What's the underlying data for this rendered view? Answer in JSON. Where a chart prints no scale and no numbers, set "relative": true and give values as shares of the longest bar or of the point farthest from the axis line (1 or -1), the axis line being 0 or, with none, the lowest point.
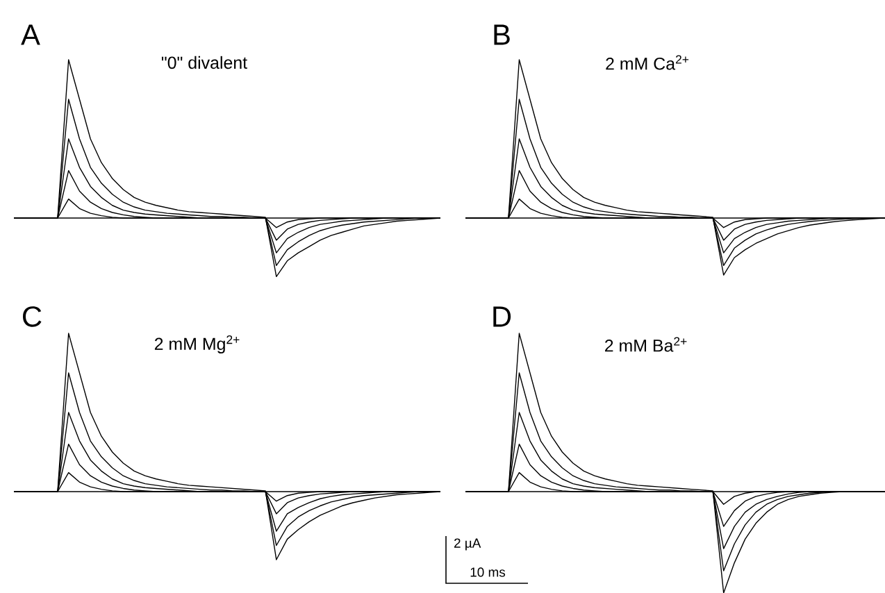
{
  "chart_data": [
    {
      "type": "line",
      "title": "\"0\" divalent",
      "annotations": [
        "A"
      ],
      "relative": true,
      "categories": [
        null,
        null,
        null,
        null,
        null,
        null,
        null,
        null,
        null,
        null,
        null,
        null,
        null,
        null,
        null,
        null,
        null,
        null,
        null,
        null,
        null,
        null,
        null,
        null,
        null,
        null,
        null,
        null,
        null,
        null,
        null,
        null,
        null,
        null,
        null,
        null,
        null,
        null,
        null,
        null
      ],
      "series": [
        {
          "color": "#000000",
          "values": [
            0,
            0,
            0,
            0,
            0,
            1,
            0.75,
            0.5,
            0.35,
            0.25,
            0.18,
            0.13,
            0.1,
            0.08,
            0.065,
            0.05,
            0.04,
            0.035,
            0.03,
            0.025,
            0.02,
            0.015,
            0.01,
            0.005,
            -0.37,
            -0.27,
            -0.22,
            -0.18,
            -0.14,
            -0.11,
            -0.09,
            -0.07,
            -0.05,
            -0.04,
            -0.03,
            -0.02,
            -0.015,
            -0.01,
            -0.005,
            0
          ]
        },
        {
          "color": "#000000",
          "values": [
            0,
            0,
            0,
            0,
            0,
            0.75,
            0.5,
            0.32,
            0.22,
            0.15,
            0.1,
            0.07,
            0.05,
            0.04,
            0.03,
            0.025,
            0.02,
            0.015,
            0.01,
            0.01,
            0.005,
            0.005,
            0,
            0,
            -0.3,
            -0.2,
            -0.15,
            -0.11,
            -0.08,
            -0.06,
            -0.045,
            -0.035,
            -0.025,
            -0.02,
            -0.015,
            -0.01,
            -0.005,
            0,
            0,
            0
          ]
        },
        {
          "color": "#000000",
          "values": [
            0,
            0,
            0,
            0,
            0,
            0.5,
            0.32,
            0.2,
            0.13,
            0.08,
            0.05,
            0.035,
            0.025,
            0.02,
            0.015,
            0.01,
            0.005,
            0,
            0,
            0,
            0,
            0,
            0,
            0,
            -0.22,
            -0.13,
            -0.09,
            -0.06,
            -0.04,
            -0.03,
            -0.02,
            -0.015,
            -0.01,
            -0.005,
            0,
            0,
            0,
            0,
            0,
            0
          ]
        },
        {
          "color": "#000000",
          "values": [
            0,
            0,
            0,
            0,
            0,
            0.3,
            0.17,
            0.1,
            0.06,
            0.035,
            0.02,
            0.01,
            0.005,
            0,
            0,
            0,
            0,
            0,
            0,
            0,
            0,
            0,
            0,
            0,
            -0.14,
            -0.07,
            -0.04,
            -0.025,
            -0.015,
            -0.01,
            -0.005,
            0,
            0,
            0,
            0,
            0,
            0,
            0,
            0,
            0
          ]
        },
        {
          "color": "#000000",
          "values": [
            0,
            0,
            0,
            0,
            0,
            0.12,
            0.06,
            0.03,
            0.015,
            0.005,
            0,
            0,
            0,
            0,
            0,
            0,
            0,
            0,
            0,
            0,
            0,
            0,
            0,
            0,
            -0.06,
            -0.025,
            -0.01,
            -0.005,
            0,
            0,
            0,
            0,
            0,
            0,
            0,
            0,
            0,
            0,
            0,
            0
          ]
        }
      ]
    },
    {
      "type": "line",
      "title": "2 mM Ca$^{2+}$",
      "annotations": [
        "B"
      ],
      "relative": true,
      "categories": [
        null,
        null,
        null,
        null,
        null,
        null,
        null,
        null,
        null,
        null,
        null,
        null,
        null,
        null,
        null,
        null,
        null,
        null,
        null,
        null,
        null,
        null,
        null,
        null,
        null,
        null,
        null,
        null,
        null,
        null,
        null,
        null,
        null,
        null,
        null,
        null,
        null,
        null,
        null,
        null
      ],
      "series": [
        {
          "color": "#000000",
          "values": [
            0,
            0,
            0,
            0,
            0,
            1,
            0.75,
            0.5,
            0.35,
            0.25,
            0.18,
            0.13,
            0.1,
            0.08,
            0.065,
            0.05,
            0.04,
            0.035,
            0.03,
            0.025,
            0.02,
            0.015,
            0.01,
            0.005,
            -0.36,
            -0.25,
            -0.2,
            -0.16,
            -0.13,
            -0.1,
            -0.08,
            -0.06,
            -0.045,
            -0.035,
            -0.025,
            -0.018,
            -0.012,
            -0.008,
            -0.004,
            0
          ]
        },
        {
          "color": "#000000",
          "values": [
            0,
            0,
            0,
            0,
            0,
            0.75,
            0.5,
            0.32,
            0.22,
            0.15,
            0.1,
            0.07,
            0.05,
            0.04,
            0.03,
            0.025,
            0.02,
            0.015,
            0.01,
            0.01,
            0.005,
            0.005,
            0,
            0,
            -0.3,
            -0.19,
            -0.14,
            -0.1,
            -0.075,
            -0.055,
            -0.04,
            -0.03,
            -0.022,
            -0.016,
            -0.011,
            -0.007,
            -0.004,
            0,
            0,
            0
          ]
        },
        {
          "color": "#000000",
          "values": [
            0,
            0,
            0,
            0,
            0,
            0.5,
            0.32,
            0.2,
            0.13,
            0.08,
            0.05,
            0.035,
            0.025,
            0.02,
            0.015,
            0.01,
            0.005,
            0,
            0,
            0,
            0,
            0,
            0,
            0,
            -0.22,
            -0.13,
            -0.09,
            -0.06,
            -0.04,
            -0.03,
            -0.02,
            -0.015,
            -0.01,
            -0.005,
            0,
            0,
            0,
            0,
            0,
            0
          ]
        },
        {
          "color": "#000000",
          "values": [
            0,
            0,
            0,
            0,
            0,
            0.3,
            0.17,
            0.1,
            0.06,
            0.035,
            0.02,
            0.01,
            0.005,
            0,
            0,
            0,
            0,
            0,
            0,
            0,
            0,
            0,
            0,
            0,
            -0.14,
            -0.07,
            -0.04,
            -0.025,
            -0.015,
            -0.01,
            -0.005,
            0,
            0,
            0,
            0,
            0,
            0,
            0,
            0,
            0
          ]
        },
        {
          "color": "#000000",
          "values": [
            0,
            0,
            0,
            0,
            0,
            0.12,
            0.06,
            0.03,
            0.015,
            0.005,
            0,
            0,
            0,
            0,
            0,
            0,
            0,
            0,
            0,
            0,
            0,
            0,
            0,
            0,
            -0.06,
            -0.025,
            -0.01,
            -0.005,
            0,
            0,
            0,
            0,
            0,
            0,
            0,
            0,
            0,
            0,
            0,
            0
          ]
        }
      ]
    },
    {
      "type": "line",
      "title": "2 mM Mg$^{2+}$",
      "annotations": [
        "C"
      ],
      "relative": true,
      "categories": [
        null,
        null,
        null,
        null,
        null,
        null,
        null,
        null,
        null,
        null,
        null,
        null,
        null,
        null,
        null,
        null,
        null,
        null,
        null,
        null,
        null,
        null,
        null,
        null,
        null,
        null,
        null,
        null,
        null,
        null,
        null,
        null,
        null,
        null,
        null,
        null,
        null,
        null,
        null,
        null
      ],
      "series": [
        {
          "color": "#000000",
          "values": [
            0,
            0,
            0,
            0,
            0,
            1,
            0.75,
            0.5,
            0.35,
            0.25,
            0.18,
            0.13,
            0.1,
            0.08,
            0.065,
            0.05,
            0.04,
            0.035,
            0.03,
            0.025,
            0.02,
            0.015,
            0.01,
            0.005,
            -0.43,
            -0.3,
            -0.24,
            -0.19,
            -0.15,
            -0.12,
            -0.09,
            -0.07,
            -0.055,
            -0.04,
            -0.03,
            -0.02,
            -0.015,
            -0.01,
            -0.005,
            0
          ]
        },
        {
          "color": "#000000",
          "values": [
            0,
            0,
            0,
            0,
            0,
            0.75,
            0.5,
            0.32,
            0.22,
            0.15,
            0.1,
            0.07,
            0.05,
            0.04,
            0.03,
            0.025,
            0.02,
            0.015,
            0.01,
            0.01,
            0.005,
            0.005,
            0,
            0,
            -0.34,
            -0.22,
            -0.16,
            -0.12,
            -0.09,
            -0.065,
            -0.05,
            -0.035,
            -0.025,
            -0.02,
            -0.015,
            -0.01,
            -0.005,
            0,
            0,
            0
          ]
        },
        {
          "color": "#000000",
          "values": [
            0,
            0,
            0,
            0,
            0,
            0.5,
            0.32,
            0.2,
            0.13,
            0.08,
            0.05,
            0.035,
            0.025,
            0.02,
            0.015,
            0.01,
            0.005,
            0,
            0,
            0,
            0,
            0,
            0,
            0,
            -0.25,
            -0.14,
            -0.1,
            -0.07,
            -0.045,
            -0.03,
            -0.02,
            -0.015,
            -0.01,
            -0.005,
            0,
            0,
            0,
            0,
            0,
            0
          ]
        },
        {
          "color": "#000000",
          "values": [
            0,
            0,
            0,
            0,
            0,
            0.3,
            0.17,
            0.1,
            0.06,
            0.035,
            0.02,
            0.01,
            0.005,
            0,
            0,
            0,
            0,
            0,
            0,
            0,
            0,
            0,
            0,
            0,
            -0.14,
            -0.07,
            -0.04,
            -0.025,
            -0.015,
            -0.01,
            -0.005,
            0,
            0,
            0,
            0,
            0,
            0,
            0,
            0,
            0
          ]
        },
        {
          "color": "#000000",
          "values": [
            0,
            0,
            0,
            0,
            0,
            0.12,
            0.06,
            0.03,
            0.015,
            0.005,
            0,
            0,
            0,
            0,
            0,
            0,
            0,
            0,
            0,
            0,
            0,
            0,
            0,
            0,
            -0.06,
            -0.025,
            -0.01,
            -0.005,
            0,
            0,
            0,
            0,
            0,
            0,
            0,
            0,
            0,
            0,
            0,
            0
          ]
        }
      ]
    },
    {
      "type": "line",
      "title": "2 mM Ba$^{2+}$",
      "annotations": [
        "D",
        "2 µA",
        "10 ms"
      ],
      "relative": true,
      "categories": [
        null,
        null,
        null,
        null,
        null,
        null,
        null,
        null,
        null,
        null,
        null,
        null,
        null,
        null,
        null,
        null,
        null,
        null,
        null,
        null,
        null,
        null,
        null,
        null,
        null,
        null,
        null,
        null,
        null,
        null,
        null,
        null,
        null,
        null,
        null,
        null,
        null,
        null,
        null,
        null
      ],
      "series": [
        {
          "color": "#000000",
          "values": [
            0,
            0,
            0,
            0,
            0,
            1,
            0.75,
            0.5,
            0.35,
            0.25,
            0.18,
            0.13,
            0.1,
            0.08,
            0.065,
            0.05,
            0.04,
            0.035,
            0.03,
            0.025,
            0.02,
            0.015,
            0.01,
            0.005,
            -0.64,
            -0.45,
            -0.3,
            -0.2,
            -0.13,
            -0.08,
            -0.05,
            -0.03,
            -0.02,
            -0.01,
            -0.005,
            0,
            0,
            0,
            0,
            0
          ]
        },
        {
          "color": "#000000",
          "values": [
            0,
            0,
            0,
            0,
            0,
            0.75,
            0.5,
            0.32,
            0.22,
            0.15,
            0.1,
            0.07,
            0.05,
            0.04,
            0.03,
            0.025,
            0.02,
            0.015,
            0.01,
            0.01,
            0.005,
            0.005,
            0,
            0,
            -0.5,
            -0.33,
            -0.21,
            -0.13,
            -0.08,
            -0.05,
            -0.03,
            -0.02,
            -0.01,
            -0.005,
            0,
            0,
            0,
            0,
            0,
            0
          ]
        },
        {
          "color": "#000000",
          "values": [
            0,
            0,
            0,
            0,
            0,
            0.5,
            0.32,
            0.2,
            0.13,
            0.08,
            0.05,
            0.035,
            0.025,
            0.02,
            0.015,
            0.01,
            0.005,
            0,
            0,
            0,
            0,
            0,
            0,
            0,
            -0.36,
            -0.22,
            -0.13,
            -0.08,
            -0.05,
            -0.03,
            -0.015,
            -0.005,
            0,
            0,
            0,
            0,
            0,
            0,
            0,
            0
          ]
        },
        {
          "color": "#000000",
          "values": [
            0,
            0,
            0,
            0,
            0,
            0.3,
            0.17,
            0.1,
            0.06,
            0.035,
            0.02,
            0.01,
            0.005,
            0,
            0,
            0,
            0,
            0,
            0,
            0,
            0,
            0,
            0,
            0,
            -0.22,
            -0.12,
            -0.06,
            -0.03,
            -0.015,
            -0.005,
            0,
            0,
            0,
            0,
            0,
            0,
            0,
            0,
            0,
            0
          ]
        },
        {
          "color": "#000000",
          "values": [
            0,
            0,
            0,
            0,
            0,
            0.12,
            0.06,
            0.03,
            0.015,
            0.005,
            0,
            0,
            0,
            0,
            0,
            0,
            0,
            0,
            0,
            0,
            0,
            0,
            0,
            0,
            -0.08,
            -0.03,
            -0.01,
            0,
            0,
            0,
            0,
            0,
            0,
            0,
            0,
            0,
            0,
            0,
            0,
            0
          ]
        }
      ]
    }
  ]
}
